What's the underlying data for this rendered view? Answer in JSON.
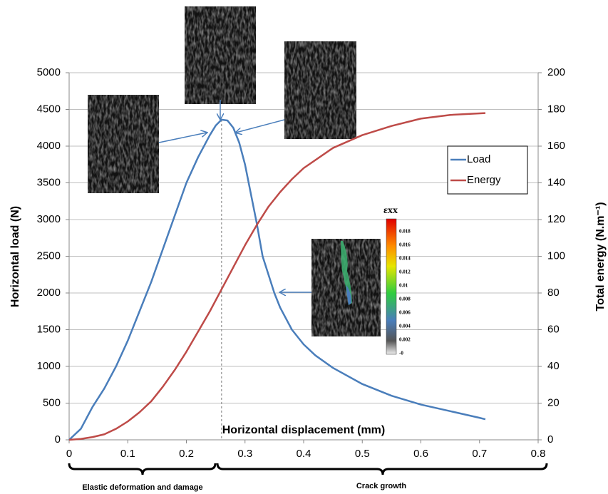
{
  "chart_data": {
    "type": "line",
    "y_label": "Horizontal load (N)",
    "y2_label": "Total energy (N.m⁻¹)",
    "x_label": "Horizontal displacement (mm)",
    "xlim": [
      0,
      0.8
    ],
    "xticks": [
      0,
      0.1,
      0.2,
      0.3,
      0.4,
      0.5,
      0.6,
      0.7,
      0.8
    ],
    "ylim": [
      0,
      5000
    ],
    "yticks": [
      0,
      500,
      1000,
      1500,
      2000,
      2500,
      3000,
      3500,
      4000,
      4500,
      5000
    ],
    "y2lim": [
      0,
      200
    ],
    "y2ticks": [
      0,
      20,
      40,
      60,
      80,
      100,
      120,
      140,
      160,
      180,
      200
    ],
    "grid": true,
    "legend": "right",
    "series": [
      {
        "name": "Load",
        "color": "#4a7ebb",
        "x": [
          0,
          0.02,
          0.04,
          0.06,
          0.08,
          0.1,
          0.12,
          0.14,
          0.16,
          0.18,
          0.2,
          0.22,
          0.24,
          0.25,
          0.26,
          0.27,
          0.28,
          0.29,
          0.3,
          0.31,
          0.32,
          0.33,
          0.34,
          0.35,
          0.36,
          0.38,
          0.4,
          0.42,
          0.45,
          0.5,
          0.55,
          0.6,
          0.65,
          0.7,
          0.71
        ],
        "values": [
          0,
          150,
          450,
          700,
          1000,
          1350,
          1750,
          2150,
          2600,
          3050,
          3500,
          3850,
          4150,
          4280,
          4360,
          4350,
          4250,
          4050,
          3750,
          3350,
          2950,
          2500,
          2250,
          2000,
          1800,
          1500,
          1300,
          1150,
          980,
          760,
          600,
          480,
          390,
          300,
          280
        ]
      },
      {
        "name": "Energy",
        "color": "#be4b48",
        "axis": "y2",
        "x": [
          0,
          0.02,
          0.04,
          0.06,
          0.08,
          0.1,
          0.12,
          0.14,
          0.16,
          0.18,
          0.2,
          0.22,
          0.24,
          0.26,
          0.28,
          0.3,
          0.32,
          0.34,
          0.36,
          0.38,
          0.4,
          0.45,
          0.5,
          0.55,
          0.6,
          0.65,
          0.71
        ],
        "values": [
          0,
          0.5,
          1.5,
          3,
          6,
          10,
          15,
          21,
          29,
          38,
          48,
          59,
          70,
          82,
          94,
          106,
          117,
          127,
          135,
          142,
          148,
          159,
          166,
          171,
          175,
          177,
          178
        ]
      }
    ],
    "phases": [
      "Elastic deformation and damage",
      "Crack growth"
    ],
    "colorbar": {
      "label": "εxx",
      "ticks": [
        "0.018",
        "0.016",
        "0.014",
        "0.012",
        "0.01",
        "0.008",
        "0.006",
        "0.004",
        "0.002",
        "-0"
      ]
    }
  }
}
